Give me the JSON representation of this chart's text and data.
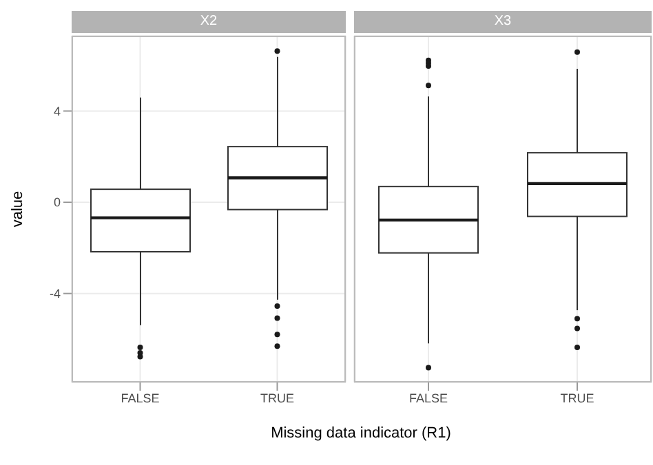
{
  "chart_data": [
    {
      "type": "box",
      "title": "X2",
      "ylabel": "value",
      "xlabel": "Missing data indicator (R1)",
      "categories": [
        "FALSE",
        "TRUE"
      ],
      "ylim": [
        -7.9,
        7.3
      ],
      "yticks": [
        -4,
        0,
        4
      ],
      "grid": true,
      "boxes": [
        {
          "low": -5.39,
          "q1": -2.17,
          "median": -0.68,
          "q3": 0.57,
          "high": 4.59,
          "outliers": [
            -6.36,
            -6.6,
            -6.77
          ]
        },
        {
          "low": -4.27,
          "q1": -0.32,
          "median": 1.07,
          "q3": 2.44,
          "high": 6.37,
          "outliers": [
            6.63,
            -4.55,
            -5.08,
            -5.8,
            -6.31
          ]
        }
      ]
    },
    {
      "type": "box",
      "title": "X3",
      "categories": [
        "FALSE",
        "TRUE"
      ],
      "ylim": [
        -7.9,
        7.3
      ],
      "yticks": [
        -4,
        0,
        4
      ],
      "grid": true,
      "tick_labels": "x",
      "boxes": [
        {
          "low": -6.19,
          "q1": -2.22,
          "median": -0.78,
          "q3": 0.69,
          "high": 4.64,
          "outliers": [
            6.22,
            6.1,
            5.97,
            5.12,
            -7.25
          ]
        },
        {
          "low": -4.73,
          "q1": -0.62,
          "median": 0.82,
          "q3": 2.17,
          "high": 5.85,
          "outliers": [
            6.58,
            -5.1,
            -5.53,
            -6.36
          ]
        }
      ]
    }
  ]
}
